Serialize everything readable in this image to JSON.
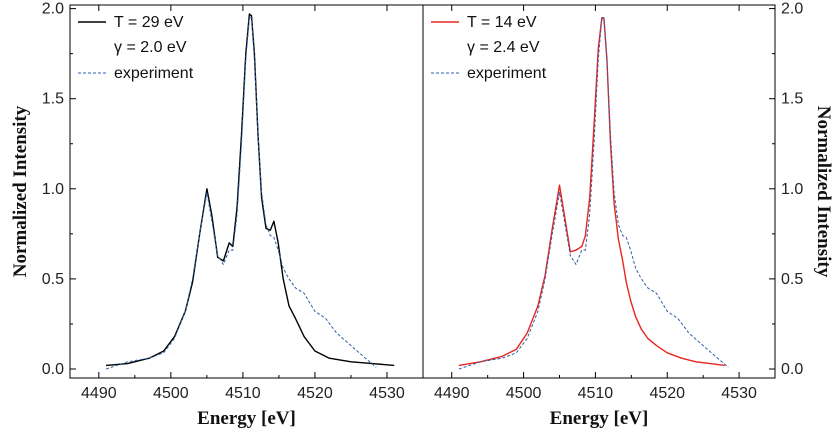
{
  "chart_data": [
    {
      "type": "line",
      "panel": "left",
      "xlabel": "Energy [eV]",
      "ylabel": "Normalized Intensity",
      "xlim": [
        4486,
        4535
      ],
      "ylim": [
        -0.05,
        2.02
      ],
      "xticks": [
        "4490",
        "4500",
        "4510",
        "4520",
        "4530"
      ],
      "yticks": [
        "0.0",
        "0.5",
        "1.0",
        "1.5",
        "2.0"
      ],
      "legend_position": "top-left",
      "legend": [
        "T = 29 eV",
        "γ = 2.0 eV",
        "experiment"
      ],
      "series": [
        {
          "name": "T = 29 eV",
          "color": "#000000",
          "style": "solid",
          "x": [
            4491,
            4494,
            4497,
            4499,
            4500.5,
            4502,
            4503,
            4504,
            4505,
            4505.7,
            4506.5,
            4507.3,
            4508.1,
            4508.6,
            4509.2,
            4509.8,
            4510.4,
            4510.9,
            4511.2,
            4511.6,
            4512.1,
            4512.6,
            4513.2,
            4513.8,
            4514.3,
            4514.9,
            4515.6,
            4516.4,
            4517.3,
            4518.5,
            4520,
            4522,
            4525,
            4528,
            4531
          ],
          "y": [
            0.02,
            0.03,
            0.06,
            0.1,
            0.18,
            0.32,
            0.48,
            0.75,
            1.0,
            0.85,
            0.62,
            0.6,
            0.7,
            0.68,
            0.9,
            1.3,
            1.75,
            1.97,
            1.96,
            1.75,
            1.3,
            0.95,
            0.78,
            0.77,
            0.82,
            0.7,
            0.5,
            0.35,
            0.28,
            0.18,
            0.1,
            0.06,
            0.04,
            0.03,
            0.02
          ]
        },
        {
          "name": "experiment",
          "color": "#2e5fa8",
          "style": "dashed",
          "x": [
            4491,
            4494,
            4497,
            4499,
            4500.5,
            4502,
            4503,
            4504,
            4505,
            4505.7,
            4506.5,
            4507.3,
            4508.1,
            4508.6,
            4509.2,
            4509.8,
            4510.4,
            4510.9,
            4511.2,
            4511.6,
            4512.1,
            4512.6,
            4513.2,
            4513.8,
            4514.3,
            4514.9,
            4515.6,
            4516.4,
            4517.3,
            4518.5,
            4520,
            4521.5,
            4523,
            4525,
            4527,
            4528.5
          ],
          "y": [
            0.0,
            0.04,
            0.06,
            0.09,
            0.17,
            0.32,
            0.5,
            0.75,
            0.98,
            0.82,
            0.63,
            0.58,
            0.66,
            0.66,
            0.86,
            1.25,
            1.72,
            1.95,
            1.95,
            1.72,
            1.3,
            0.98,
            0.8,
            0.74,
            0.73,
            0.66,
            0.56,
            0.5,
            0.45,
            0.42,
            0.32,
            0.28,
            0.2,
            0.13,
            0.06,
            0.01
          ]
        }
      ]
    },
    {
      "type": "line",
      "panel": "right",
      "xlabel": "Energy [eV]",
      "ylabel": "Normalized Intensity",
      "xlim": [
        4486,
        4535
      ],
      "ylim": [
        -0.05,
        2.02
      ],
      "xticks": [
        "4490",
        "4500",
        "4510",
        "4520",
        "4530"
      ],
      "yticks": [
        "0.0",
        "0.5",
        "1.0",
        "1.5",
        "2.0"
      ],
      "legend_position": "top-left",
      "legend": [
        "T = 14 eV",
        "γ = 2.4 eV",
        "experiment"
      ],
      "series": [
        {
          "name": "T = 14 eV",
          "color": "#e8261e",
          "style": "solid",
          "x": [
            4491,
            4494,
            4497,
            4499,
            4500.5,
            4502,
            4503,
            4504,
            4505,
            4505.7,
            4506.5,
            4507.3,
            4508.1,
            4508.6,
            4509.2,
            4509.8,
            4510.4,
            4510.9,
            4511.2,
            4511.6,
            4512.1,
            4512.6,
            4513.2,
            4513.8,
            4514.3,
            4514.9,
            4515.6,
            4516.4,
            4517.3,
            4518.5,
            4520,
            4522,
            4524,
            4526,
            4528
          ],
          "y": [
            0.02,
            0.04,
            0.07,
            0.11,
            0.2,
            0.35,
            0.52,
            0.78,
            1.02,
            0.85,
            0.65,
            0.66,
            0.68,
            0.74,
            0.95,
            1.35,
            1.78,
            1.95,
            1.94,
            1.72,
            1.25,
            0.92,
            0.72,
            0.6,
            0.48,
            0.38,
            0.29,
            0.22,
            0.17,
            0.13,
            0.09,
            0.06,
            0.04,
            0.03,
            0.02
          ]
        },
        {
          "name": "experiment",
          "color": "#2e5fa8",
          "style": "dashed",
          "x": [
            4491,
            4494,
            4497,
            4499,
            4500.5,
            4502,
            4503,
            4504,
            4505,
            4505.7,
            4506.5,
            4507.3,
            4508.1,
            4508.6,
            4509.2,
            4509.8,
            4510.4,
            4510.9,
            4511.2,
            4511.6,
            4512.1,
            4512.6,
            4513.2,
            4513.8,
            4514.3,
            4514.9,
            4515.6,
            4516.4,
            4517.3,
            4518.5,
            4520,
            4521.5,
            4523,
            4525,
            4527,
            4528.5
          ],
          "y": [
            0.0,
            0.04,
            0.06,
            0.09,
            0.17,
            0.32,
            0.5,
            0.75,
            0.98,
            0.82,
            0.63,
            0.58,
            0.66,
            0.66,
            0.86,
            1.25,
            1.72,
            1.95,
            1.95,
            1.72,
            1.3,
            0.98,
            0.8,
            0.74,
            0.73,
            0.66,
            0.56,
            0.5,
            0.45,
            0.42,
            0.32,
            0.28,
            0.2,
            0.13,
            0.06,
            0.01
          ]
        }
      ]
    }
  ]
}
